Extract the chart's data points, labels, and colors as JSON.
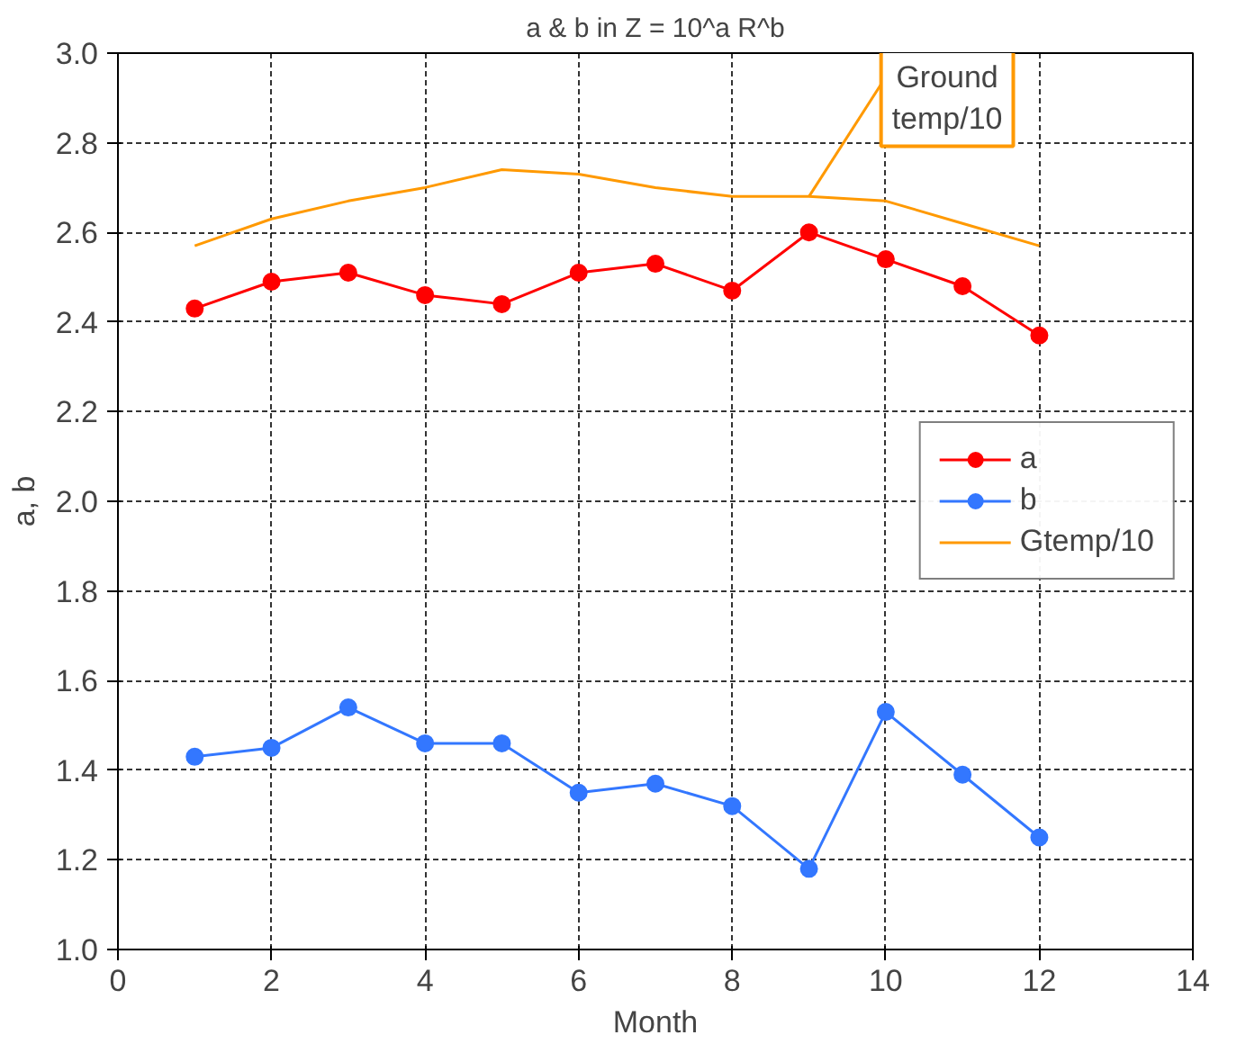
{
  "chart_data": {
    "type": "line",
    "title": "a & b in Z = 10^a R^b",
    "xlabel": "Month",
    "ylabel": "a, b",
    "x": [
      1,
      2,
      3,
      4,
      5,
      6,
      7,
      8,
      9,
      10,
      11,
      12
    ],
    "series": [
      {
        "name": "a",
        "color": "#ff0000",
        "marker": "circle",
        "values": [
          2.43,
          2.49,
          2.51,
          2.46,
          2.44,
          2.51,
          2.53,
          2.47,
          2.6,
          2.54,
          2.48,
          2.37
        ]
      },
      {
        "name": "b",
        "color": "#3377ff",
        "marker": "circle",
        "values": [
          1.43,
          1.45,
          1.54,
          1.46,
          1.46,
          1.35,
          1.37,
          1.32,
          1.18,
          1.53,
          1.39,
          1.25
        ]
      },
      {
        "name": "Gtemp/10",
        "color": "#ff9900",
        "marker": "none",
        "values": [
          2.57,
          2.63,
          2.67,
          2.7,
          2.74,
          2.73,
          2.7,
          2.68,
          2.68,
          2.67,
          2.62,
          2.57
        ]
      }
    ],
    "annotations": [
      {
        "text": "Ground\ntemp/10",
        "x": 9,
        "y": 2.68
      }
    ],
    "xlim": [
      0,
      14
    ],
    "xticks": [
      0,
      2,
      4,
      6,
      8,
      10,
      12,
      14
    ],
    "ylim": [
      1.0,
      3.0
    ],
    "yticks": [
      {
        "value": 1.0,
        "label": "1.0"
      },
      {
        "value": 1.2,
        "label": "1.2"
      },
      {
        "value": 1.4,
        "label": "1.4"
      },
      {
        "value": 1.6,
        "label": "1.6"
      },
      {
        "value": 1.8,
        "label": "1.8"
      },
      {
        "value": 2.0,
        "label": "2.0"
      },
      {
        "value": 2.2,
        "label": "2.2"
      },
      {
        "value": 2.4,
        "label": "2.4"
      },
      {
        "value": 2.6,
        "label": "2.6"
      },
      {
        "value": 2.8,
        "label": "2.8"
      },
      {
        "value": 3.0,
        "label": "3.0"
      }
    ],
    "grid": true,
    "legend": "right"
  }
}
